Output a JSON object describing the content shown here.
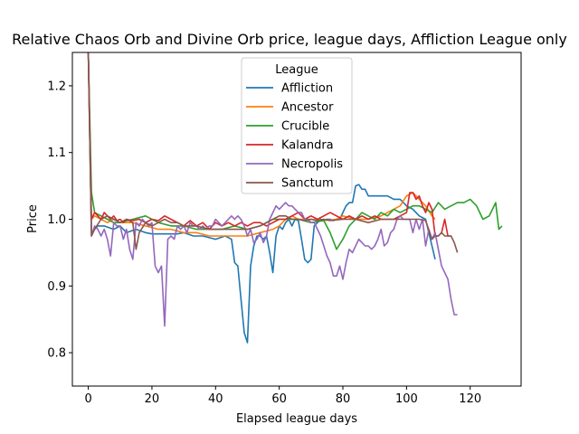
{
  "chart_data": {
    "type": "line",
    "title": "Relative Chaos Orb and Divine Orb price, league days, Affliction League only",
    "xlabel": "Elapsed league days",
    "ylabel": "Price",
    "xlim": [
      -5,
      136
    ],
    "ylim": [
      0.75,
      1.25
    ],
    "xticks": [
      0,
      20,
      40,
      60,
      80,
      100,
      120
    ],
    "yticks": [
      0.8,
      0.9,
      1.0,
      1.1,
      1.2
    ],
    "grid": false,
    "legend": {
      "title": "League",
      "placement": "top-center"
    },
    "series": [
      {
        "name": "Affliction",
        "color": "#1f77b4",
        "x": [
          0,
          1,
          2,
          3,
          5,
          8,
          10,
          12,
          15,
          18,
          20,
          22,
          25,
          28,
          30,
          33,
          36,
          40,
          43,
          45,
          46,
          47,
          48,
          49,
          50,
          51,
          52,
          53,
          54,
          55,
          56,
          57,
          58,
          59,
          60,
          61,
          62,
          63,
          64,
          65,
          66,
          67,
          68,
          69,
          70,
          71,
          72,
          73,
          74,
          75,
          76,
          77,
          78,
          79,
          80,
          81,
          82,
          83,
          84,
          85,
          86,
          87,
          88,
          90,
          92,
          94,
          96,
          98,
          100,
          102,
          104,
          106,
          107,
          108,
          109
        ],
        "y": [
          1.25,
          0.98,
          0.985,
          0.99,
          0.99,
          0.985,
          0.99,
          0.98,
          0.985,
          0.98,
          0.978,
          0.978,
          0.978,
          0.978,
          0.98,
          0.975,
          0.975,
          0.97,
          0.975,
          0.97,
          0.935,
          0.93,
          0.88,
          0.83,
          0.815,
          0.93,
          0.96,
          0.975,
          0.975,
          0.97,
          0.975,
          0.95,
          0.92,
          0.975,
          0.99,
          0.985,
          0.995,
          1.0,
          0.99,
          1.0,
          0.998,
          0.97,
          0.94,
          0.935,
          0.94,
          0.99,
          0.995,
          1.0,
          0.998,
          1.0,
          1.0,
          0.998,
          1.0,
          1.0,
          1.01,
          1.02,
          1.025,
          1.025,
          1.05,
          1.052,
          1.045,
          1.045,
          1.035,
          1.035,
          1.035,
          1.035,
          1.03,
          1.03,
          1.02,
          1.015,
          1.005,
          1.0,
          0.98,
          0.96,
          0.94
        ]
      },
      {
        "name": "Ancestor",
        "color": "#ff7f0e",
        "x": [
          0,
          1,
          2,
          4,
          6,
          8,
          10,
          14,
          18,
          22,
          26,
          30,
          34,
          38,
          42,
          46,
          50,
          54,
          58,
          60,
          62,
          64,
          66,
          70,
          74,
          78,
          80,
          84,
          88,
          92,
          94,
          96,
          98,
          100,
          102,
          104,
          106,
          108,
          109
        ],
        "y": [
          1.25,
          1.0,
          1.005,
          1.0,
          0.995,
          1.0,
          0.995,
          0.995,
          0.99,
          0.985,
          0.985,
          0.98,
          0.98,
          0.975,
          0.975,
          0.975,
          0.975,
          0.98,
          0.985,
          0.99,
          1.0,
          1.005,
          1.0,
          1.0,
          0.998,
          1.0,
          1.005,
          1.0,
          1.0,
          1.005,
          1.01,
          1.015,
          1.02,
          1.035,
          1.04,
          1.03,
          1.02,
          1.005,
          1.0
        ]
      },
      {
        "name": "Crucible",
        "color": "#2ca02c",
        "x": [
          0,
          1,
          2,
          4,
          6,
          8,
          10,
          14,
          18,
          22,
          26,
          30,
          34,
          38,
          42,
          46,
          50,
          54,
          58,
          62,
          66,
          70,
          74,
          76,
          78,
          80,
          82,
          84,
          86,
          88,
          90,
          92,
          94,
          96,
          98,
          100,
          102,
          104,
          106,
          108,
          110,
          112,
          114,
          116,
          118,
          120,
          122,
          124,
          126,
          128,
          129,
          130
        ],
        "y": [
          1.25,
          1.04,
          1.01,
          1.005,
          1.0,
          0.995,
          0.995,
          1.0,
          1.005,
          0.995,
          0.99,
          0.99,
          0.985,
          0.985,
          0.985,
          0.99,
          0.985,
          0.99,
          1.0,
          1.0,
          1.0,
          0.995,
          0.998,
          0.98,
          0.955,
          0.97,
          0.99,
          1.0,
          1.01,
          1.005,
          1.0,
          1.01,
          1.005,
          1.015,
          1.01,
          1.015,
          1.02,
          1.02,
          1.015,
          1.01,
          1.025,
          1.015,
          1.02,
          1.025,
          1.025,
          1.03,
          1.02,
          1.0,
          1.005,
          1.025,
          0.985,
          0.99
        ]
      },
      {
        "name": "Kalandra",
        "color": "#d62728",
        "x": [
          0,
          1,
          2,
          3,
          4,
          5,
          6,
          7,
          8,
          9,
          10,
          11,
          12,
          14,
          16,
          18,
          20,
          22,
          24,
          26,
          28,
          30,
          32,
          34,
          36,
          38,
          40,
          42,
          44,
          46,
          48,
          50,
          52,
          54,
          56,
          58,
          60,
          62,
          64,
          66,
          68,
          70,
          72,
          74,
          76,
          78,
          80,
          82,
          84,
          86,
          88,
          90,
          92,
          94,
          96,
          98,
          100,
          101,
          102,
          103,
          104,
          105,
          106,
          107,
          108,
          109,
          110,
          111,
          112,
          113,
          114
        ],
        "y": [
          1.25,
          1.0,
          1.01,
          1.005,
          1.0,
          1.01,
          1.005,
          1.0,
          1.005,
          0.998,
          1.0,
          0.995,
          1.0,
          0.998,
          1.0,
          0.995,
          1.0,
          0.998,
          1.005,
          1.0,
          0.995,
          0.99,
          0.998,
          0.99,
          0.995,
          0.985,
          0.995,
          0.99,
          0.995,
          0.99,
          0.995,
          0.99,
          0.995,
          0.995,
          0.99,
          0.995,
          1.0,
          1.0,
          1.005,
          1.01,
          1.0,
          1.005,
          1.0,
          1.005,
          1.01,
          1.005,
          1.0,
          1.005,
          1.0,
          1.005,
          1.0,
          1.005,
          1.0,
          1.0,
          1.0,
          1.005,
          1.01,
          1.04,
          1.04,
          1.03,
          1.035,
          1.02,
          1.01,
          1.025,
          1.015,
          0.975,
          0.975,
          0.98,
          1.0,
          0.975,
          0.975
        ]
      },
      {
        "name": "Necropolis",
        "color": "#9467bd",
        "x": [
          0,
          1,
          2,
          3,
          4,
          5,
          6,
          7,
          8,
          9,
          10,
          11,
          12,
          13,
          14,
          15,
          16,
          17,
          18,
          19,
          20,
          21,
          22,
          23,
          24,
          25,
          26,
          27,
          28,
          29,
          30,
          31,
          32,
          33,
          34,
          35,
          36,
          37,
          38,
          39,
          40,
          41,
          42,
          43,
          44,
          45,
          46,
          47,
          48,
          49,
          50,
          51,
          52,
          53,
          54,
          55,
          56,
          57,
          58,
          59,
          60,
          61,
          62,
          63,
          64,
          65,
          66,
          67,
          68,
          69,
          70,
          71,
          72,
          73,
          74,
          75,
          76,
          77,
          78,
          79,
          80,
          81,
          82,
          83,
          84,
          85,
          86,
          87,
          88,
          89,
          90,
          91,
          92,
          93,
          94,
          95,
          96,
          97,
          98,
          99,
          100,
          101,
          102,
          103,
          104,
          105,
          106,
          107,
          108,
          109,
          110,
          111,
          112,
          113,
          114,
          115,
          116
        ],
        "y": [
          1.25,
          0.975,
          0.99,
          0.985,
          0.975,
          0.985,
          0.97,
          0.945,
          0.995,
          0.99,
          0.99,
          0.97,
          0.985,
          0.955,
          0.94,
          0.995,
          0.99,
          1.0,
          0.995,
          0.99,
          0.995,
          0.93,
          0.92,
          0.93,
          0.84,
          0.97,
          0.975,
          0.97,
          0.99,
          0.985,
          0.99,
          0.98,
          0.995,
          0.99,
          0.99,
          0.985,
          0.99,
          0.985,
          0.99,
          0.99,
          1.0,
          0.995,
          0.99,
          0.995,
          1.0,
          1.005,
          1.0,
          1.005,
          1.0,
          0.99,
          0.975,
          0.985,
          0.965,
          0.97,
          0.98,
          0.965,
          0.975,
          1.0,
          1.01,
          1.02,
          1.015,
          1.02,
          1.025,
          1.02,
          1.02,
          1.015,
          1.01,
          1.01,
          1.0,
          1.0,
          0.995,
          0.995,
          0.985,
          0.975,
          0.96,
          0.945,
          0.935,
          0.915,
          0.915,
          0.93,
          0.91,
          0.935,
          0.955,
          0.95,
          0.96,
          0.97,
          0.965,
          0.96,
          0.96,
          0.955,
          0.96,
          0.97,
          0.985,
          0.96,
          0.965,
          0.98,
          0.985,
          1.0,
          1.005,
          1.0,
          1.0,
          1.0,
          0.98,
          1.0,
          0.985,
          1.0,
          0.96,
          0.985,
          0.97,
          0.98,
          0.955,
          0.93,
          0.92,
          0.91,
          0.88,
          0.857,
          0.857
        ]
      },
      {
        "name": "Sanctum",
        "color": "#8c564b",
        "x": [
          0,
          1,
          2,
          4,
          6,
          8,
          10,
          12,
          14,
          15,
          16,
          18,
          20,
          22,
          24,
          26,
          28,
          30,
          34,
          38,
          42,
          46,
          50,
          54,
          58,
          60,
          62,
          64,
          66,
          68,
          70,
          72,
          74,
          76,
          80,
          84,
          88,
          92,
          96,
          100,
          104,
          106,
          108,
          109,
          110,
          111,
          112,
          113,
          114,
          115,
          116
        ],
        "y": [
          1.25,
          0.975,
          0.985,
          1.0,
          1.005,
          1.0,
          0.995,
          1.0,
          0.995,
          0.955,
          0.98,
          0.995,
          0.99,
          0.995,
          1.0,
          0.995,
          0.995,
          0.99,
          0.99,
          0.985,
          0.985,
          0.985,
          0.985,
          0.99,
          1.0,
          1.005,
          1.005,
          1.0,
          1.0,
          0.998,
          1.0,
          0.998,
          1.0,
          0.998,
          1.0,
          1.0,
          0.995,
          1.0,
          1.0,
          1.0,
          1.0,
          0.998,
          0.97,
          0.975,
          0.975,
          0.98,
          0.975,
          0.975,
          0.975,
          0.965,
          0.95
        ]
      }
    ]
  }
}
